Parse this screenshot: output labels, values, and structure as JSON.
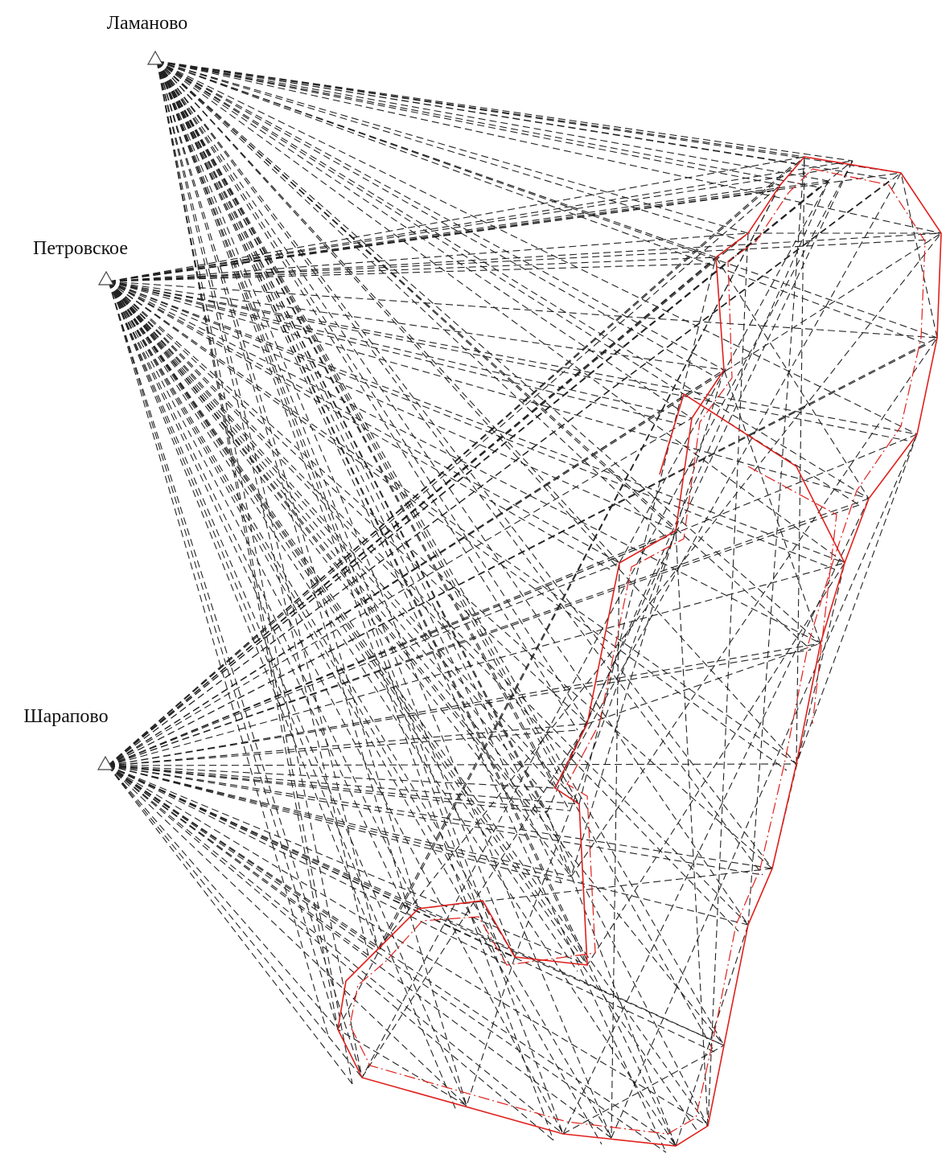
{
  "nodes": [
    {
      "label": "Ламаново"
    },
    {
      "label": "Петровское"
    },
    {
      "label": "Шарапово"
    }
  ]
}
